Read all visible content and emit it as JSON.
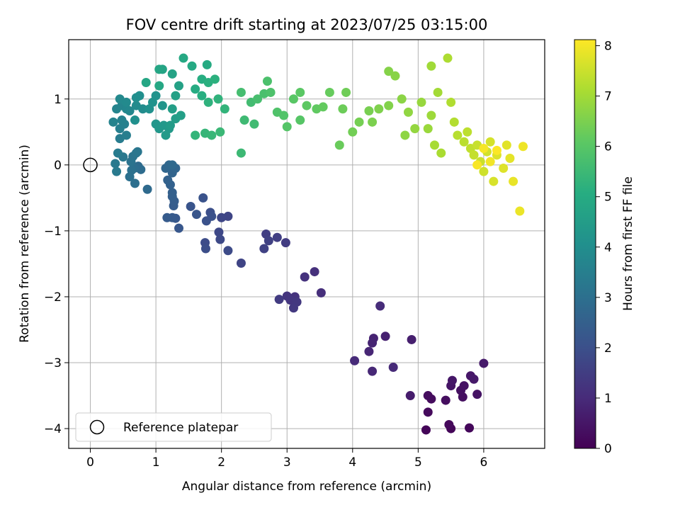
{
  "chart_data": {
    "type": "scatter",
    "title": "FOV centre drift starting at 2023/07/25 03:15:00",
    "xlabel": "Angular distance from reference (arcmin)",
    "ylabel": "Rotation from reference (arcmin)",
    "xlim": [
      -0.33,
      6.93
    ],
    "ylim": [
      -4.3,
      1.9
    ],
    "xticks": [
      0,
      1,
      2,
      3,
      4,
      5,
      6
    ],
    "yticks": [
      -4,
      -3,
      -2,
      -1,
      0,
      1
    ],
    "xtick_labels": [
      "0",
      "1",
      "2",
      "3",
      "4",
      "5",
      "6"
    ],
    "ytick_labels": [
      "−4",
      "−3",
      "−2",
      "−1",
      "0",
      "1"
    ],
    "grid": true,
    "legend": {
      "position": "lower-left",
      "entries": [
        "Reference platepar"
      ]
    },
    "reference_point": {
      "x": 0,
      "y": 0,
      "marker": "open-circle"
    },
    "colorbar": {
      "label": "Hours from first FF file",
      "colormap": "viridis",
      "range": [
        0,
        8.12
      ],
      "ticks": [
        0,
        1,
        2,
        3,
        4,
        5,
        6,
        7,
        8
      ],
      "tick_labels": [
        "0",
        "1",
        "2",
        "3",
        "4",
        "5",
        "6",
        "7",
        "8"
      ]
    },
    "point_columns": [
      "x",
      "y",
      "hours"
    ],
    "points": [
      [
        5.12,
        -4.02,
        0.1
      ],
      [
        5.5,
        -4.0,
        0.12
      ],
      [
        5.78,
        -3.99,
        0.15
      ],
      [
        5.47,
        -3.94,
        0.18
      ],
      [
        5.15,
        -3.75,
        0.22
      ],
      [
        5.2,
        -3.55,
        0.25
      ],
      [
        5.15,
        -3.5,
        0.28
      ],
      [
        5.42,
        -3.57,
        0.3
      ],
      [
        5.68,
        -3.52,
        0.33
      ],
      [
        5.65,
        -3.42,
        0.36
      ],
      [
        5.7,
        -3.35,
        0.4
      ],
      [
        5.9,
        -3.48,
        0.43
      ],
      [
        5.5,
        -3.35,
        0.46
      ],
      [
        5.52,
        -3.27,
        0.5
      ],
      [
        5.8,
        -3.2,
        0.53
      ],
      [
        5.85,
        -3.25,
        0.56
      ],
      [
        6.0,
        -3.01,
        0.6
      ],
      [
        4.88,
        -3.5,
        0.63
      ],
      [
        4.9,
        -2.65,
        0.7
      ],
      [
        4.5,
        -2.6,
        0.75
      ],
      [
        4.32,
        -2.63,
        0.8
      ],
      [
        4.3,
        -2.7,
        0.84
      ],
      [
        4.25,
        -2.83,
        0.88
      ],
      [
        4.3,
        -3.13,
        0.92
      ],
      [
        4.62,
        -3.07,
        0.96
      ],
      [
        4.03,
        -2.97,
        1.0
      ],
      [
        4.42,
        -2.14,
        1.04
      ],
      [
        3.52,
        -1.94,
        1.1
      ],
      [
        3.42,
        -1.62,
        1.14
      ],
      [
        3.27,
        -1.7,
        1.18
      ],
      [
        3.12,
        -2.0,
        1.22
      ],
      [
        3.0,
        -1.99,
        1.26
      ],
      [
        3.05,
        -2.05,
        1.3
      ],
      [
        3.15,
        -2.08,
        1.34
      ],
      [
        3.1,
        -2.17,
        1.38
      ],
      [
        2.88,
        -2.04,
        1.42
      ],
      [
        2.98,
        -1.18,
        1.46
      ],
      [
        2.68,
        -1.05,
        1.5
      ],
      [
        2.85,
        -1.1,
        1.54
      ],
      [
        2.72,
        -1.15,
        1.58
      ],
      [
        2.65,
        -1.27,
        1.62
      ],
      [
        2.3,
        -1.49,
        1.66
      ],
      [
        2.1,
        -0.78,
        1.7
      ],
      [
        2.0,
        -0.8,
        1.74
      ],
      [
        1.96,
        -1.02,
        1.78
      ],
      [
        1.98,
        -1.13,
        1.82
      ],
      [
        2.1,
        -1.3,
        1.86
      ],
      [
        1.75,
        -1.18,
        1.9
      ],
      [
        1.76,
        -1.27,
        1.94
      ],
      [
        1.83,
        -0.72,
        1.98
      ],
      [
        1.85,
        -0.78,
        2.02
      ],
      [
        1.77,
        -0.85,
        2.06
      ],
      [
        1.72,
        -0.5,
        2.1
      ],
      [
        1.53,
        -0.63,
        2.14
      ],
      [
        1.62,
        -0.75,
        2.18
      ],
      [
        1.35,
        -0.96,
        2.22
      ],
      [
        1.3,
        -0.81,
        2.26
      ],
      [
        1.25,
        -0.8,
        2.3
      ],
      [
        1.17,
        -0.8,
        2.34
      ],
      [
        1.27,
        -0.62,
        2.38
      ],
      [
        1.28,
        -0.55,
        2.42
      ],
      [
        1.25,
        -0.48,
        2.46
      ],
      [
        1.25,
        -0.42,
        2.5
      ],
      [
        1.22,
        -0.3,
        2.54
      ],
      [
        1.18,
        -0.23,
        2.58
      ],
      [
        1.25,
        -0.12,
        2.62
      ],
      [
        1.3,
        -0.05,
        2.66
      ],
      [
        1.15,
        -0.05,
        2.7
      ],
      [
        1.2,
        0.0,
        2.74
      ],
      [
        1.25,
        0.0,
        2.78
      ],
      [
        0.87,
        -0.37,
        2.82
      ],
      [
        0.73,
        -0.02,
        2.86
      ],
      [
        0.77,
        -0.07,
        2.9
      ],
      [
        0.67,
        -0.05,
        2.94
      ],
      [
        0.68,
        -0.28,
        2.98
      ],
      [
        0.6,
        -0.18,
        3.02
      ],
      [
        0.63,
        -0.08,
        3.06
      ],
      [
        0.62,
        0.05,
        3.1
      ],
      [
        0.65,
        0.13,
        3.14
      ],
      [
        0.7,
        0.18,
        3.18
      ],
      [
        0.72,
        0.2,
        3.22
      ],
      [
        0.5,
        0.12,
        3.26
      ],
      [
        0.38,
        0.02,
        3.3
      ],
      [
        0.4,
        -0.1,
        3.34
      ],
      [
        0.42,
        0.18,
        3.38
      ],
      [
        0.45,
        0.4,
        3.42
      ],
      [
        0.55,
        0.45,
        3.46
      ],
      [
        0.45,
        0.55,
        3.5
      ],
      [
        0.52,
        0.62,
        3.54
      ],
      [
        0.48,
        0.68,
        3.58
      ],
      [
        0.35,
        0.65,
        3.62
      ],
      [
        0.4,
        0.85,
        3.66
      ],
      [
        0.48,
        0.9,
        3.7
      ],
      [
        0.55,
        0.85,
        3.74
      ],
      [
        0.6,
        0.82,
        3.78
      ],
      [
        0.45,
        1.0,
        3.82
      ],
      [
        0.55,
        0.95,
        3.86
      ],
      [
        0.7,
        0.9,
        3.9
      ],
      [
        0.8,
        0.85,
        3.94
      ],
      [
        0.7,
        1.02,
        3.98
      ],
      [
        0.75,
        1.05,
        4.02
      ],
      [
        0.68,
        0.68,
        4.06
      ],
      [
        0.9,
        0.85,
        4.1
      ],
      [
        0.95,
        0.95,
        4.14
      ],
      [
        1.0,
        1.05,
        4.18
      ],
      [
        1.1,
        0.9,
        4.22
      ],
      [
        1.0,
        0.62,
        4.26
      ],
      [
        1.05,
        0.55,
        4.3
      ],
      [
        1.12,
        0.6,
        4.34
      ],
      [
        1.2,
        0.55,
        4.38
      ],
      [
        1.15,
        0.45,
        4.42
      ],
      [
        1.22,
        0.6,
        4.46
      ],
      [
        1.3,
        0.7,
        4.5
      ],
      [
        1.25,
        0.85,
        4.54
      ],
      [
        1.38,
        0.75,
        4.58
      ],
      [
        1.3,
        1.05,
        4.62
      ],
      [
        1.35,
        1.2,
        4.66
      ],
      [
        1.25,
        1.38,
        4.7
      ],
      [
        1.1,
        1.45,
        4.74
      ],
      [
        1.05,
        1.45,
        4.78
      ],
      [
        0.85,
        1.25,
        4.82
      ],
      [
        1.05,
        1.2,
        4.86
      ],
      [
        1.42,
        1.62,
        4.9
      ],
      [
        1.55,
        1.5,
        4.94
      ],
      [
        1.78,
        1.52,
        4.98
      ],
      [
        1.6,
        1.15,
        5.02
      ],
      [
        1.7,
        1.3,
        5.06
      ],
      [
        1.7,
        1.05,
        5.1
      ],
      [
        1.8,
        1.25,
        5.14
      ],
      [
        1.9,
        1.3,
        5.18
      ],
      [
        1.8,
        0.95,
        5.22
      ],
      [
        1.95,
        1.0,
        5.26
      ],
      [
        2.05,
        0.85,
        5.3
      ],
      [
        1.6,
        0.45,
        5.34
      ],
      [
        1.75,
        0.48,
        5.38
      ],
      [
        1.85,
        0.45,
        5.42
      ],
      [
        1.98,
        0.5,
        5.46
      ],
      [
        2.3,
        0.18,
        5.5
      ],
      [
        2.35,
        0.68,
        5.54
      ],
      [
        2.5,
        0.62,
        5.58
      ],
      [
        2.45,
        0.95,
        5.62
      ],
      [
        2.3,
        1.1,
        5.66
      ],
      [
        2.55,
        1.0,
        5.7
      ],
      [
        2.65,
        1.08,
        5.74
      ],
      [
        2.7,
        1.27,
        5.78
      ],
      [
        2.75,
        1.1,
        5.82
      ],
      [
        2.85,
        0.8,
        5.86
      ],
      [
        2.95,
        0.75,
        5.9
      ],
      [
        3.0,
        0.58,
        5.94
      ],
      [
        3.2,
        0.68,
        5.98
      ],
      [
        3.1,
        1.0,
        6.02
      ],
      [
        3.2,
        1.1,
        6.06
      ],
      [
        3.3,
        0.9,
        6.1
      ],
      [
        3.45,
        0.85,
        6.14
      ],
      [
        3.55,
        0.88,
        6.18
      ],
      [
        3.65,
        1.1,
        6.22
      ],
      [
        3.8,
        0.3,
        6.26
      ],
      [
        3.85,
        0.85,
        6.3
      ],
      [
        3.9,
        1.1,
        6.34
      ],
      [
        4.0,
        0.5,
        6.38
      ],
      [
        4.1,
        0.65,
        6.42
      ],
      [
        4.25,
        0.82,
        6.46
      ],
      [
        4.3,
        0.65,
        6.5
      ],
      [
        4.4,
        0.85,
        6.54
      ],
      [
        4.55,
        0.9,
        6.58
      ],
      [
        4.55,
        1.42,
        6.62
      ],
      [
        4.65,
        1.35,
        6.66
      ],
      [
        4.75,
        1.0,
        6.7
      ],
      [
        4.8,
        0.45,
        6.74
      ],
      [
        4.85,
        0.8,
        6.78
      ],
      [
        4.95,
        0.55,
        6.82
      ],
      [
        5.05,
        0.95,
        6.86
      ],
      [
        5.15,
        0.55,
        6.9
      ],
      [
        5.2,
        0.75,
        6.94
      ],
      [
        5.2,
        1.5,
        6.98
      ],
      [
        5.3,
        1.1,
        7.02
      ],
      [
        5.25,
        0.3,
        7.06
      ],
      [
        5.35,
        0.18,
        7.1
      ],
      [
        5.45,
        1.62,
        7.14
      ],
      [
        5.5,
        0.95,
        7.18
      ],
      [
        5.55,
        0.65,
        7.22
      ],
      [
        5.6,
        0.45,
        7.26
      ],
      [
        5.7,
        0.35,
        7.3
      ],
      [
        5.75,
        0.5,
        7.34
      ],
      [
        5.8,
        0.25,
        7.38
      ],
      [
        5.85,
        0.15,
        7.42
      ],
      [
        5.9,
        0.3,
        7.46
      ],
      [
        5.95,
        0.05,
        7.5
      ],
      [
        6.0,
        -0.1,
        7.54
      ],
      [
        6.05,
        0.2,
        7.58
      ],
      [
        6.1,
        0.35,
        7.62
      ],
      [
        6.15,
        -0.25,
        7.66
      ],
      [
        6.2,
        0.15,
        7.7
      ],
      [
        6.3,
        -0.05,
        7.74
      ],
      [
        6.35,
        0.3,
        7.78
      ],
      [
        6.4,
        0.1,
        7.82
      ],
      [
        6.45,
        -0.25,
        7.86
      ],
      [
        6.55,
        -0.7,
        7.9
      ],
      [
        6.6,
        0.28,
        7.94
      ],
      [
        6.1,
        0.05,
        7.98
      ],
      [
        6.0,
        0.25,
        8.02
      ],
      [
        5.9,
        0.0,
        8.06
      ],
      [
        6.2,
        0.22,
        8.1
      ]
    ]
  }
}
